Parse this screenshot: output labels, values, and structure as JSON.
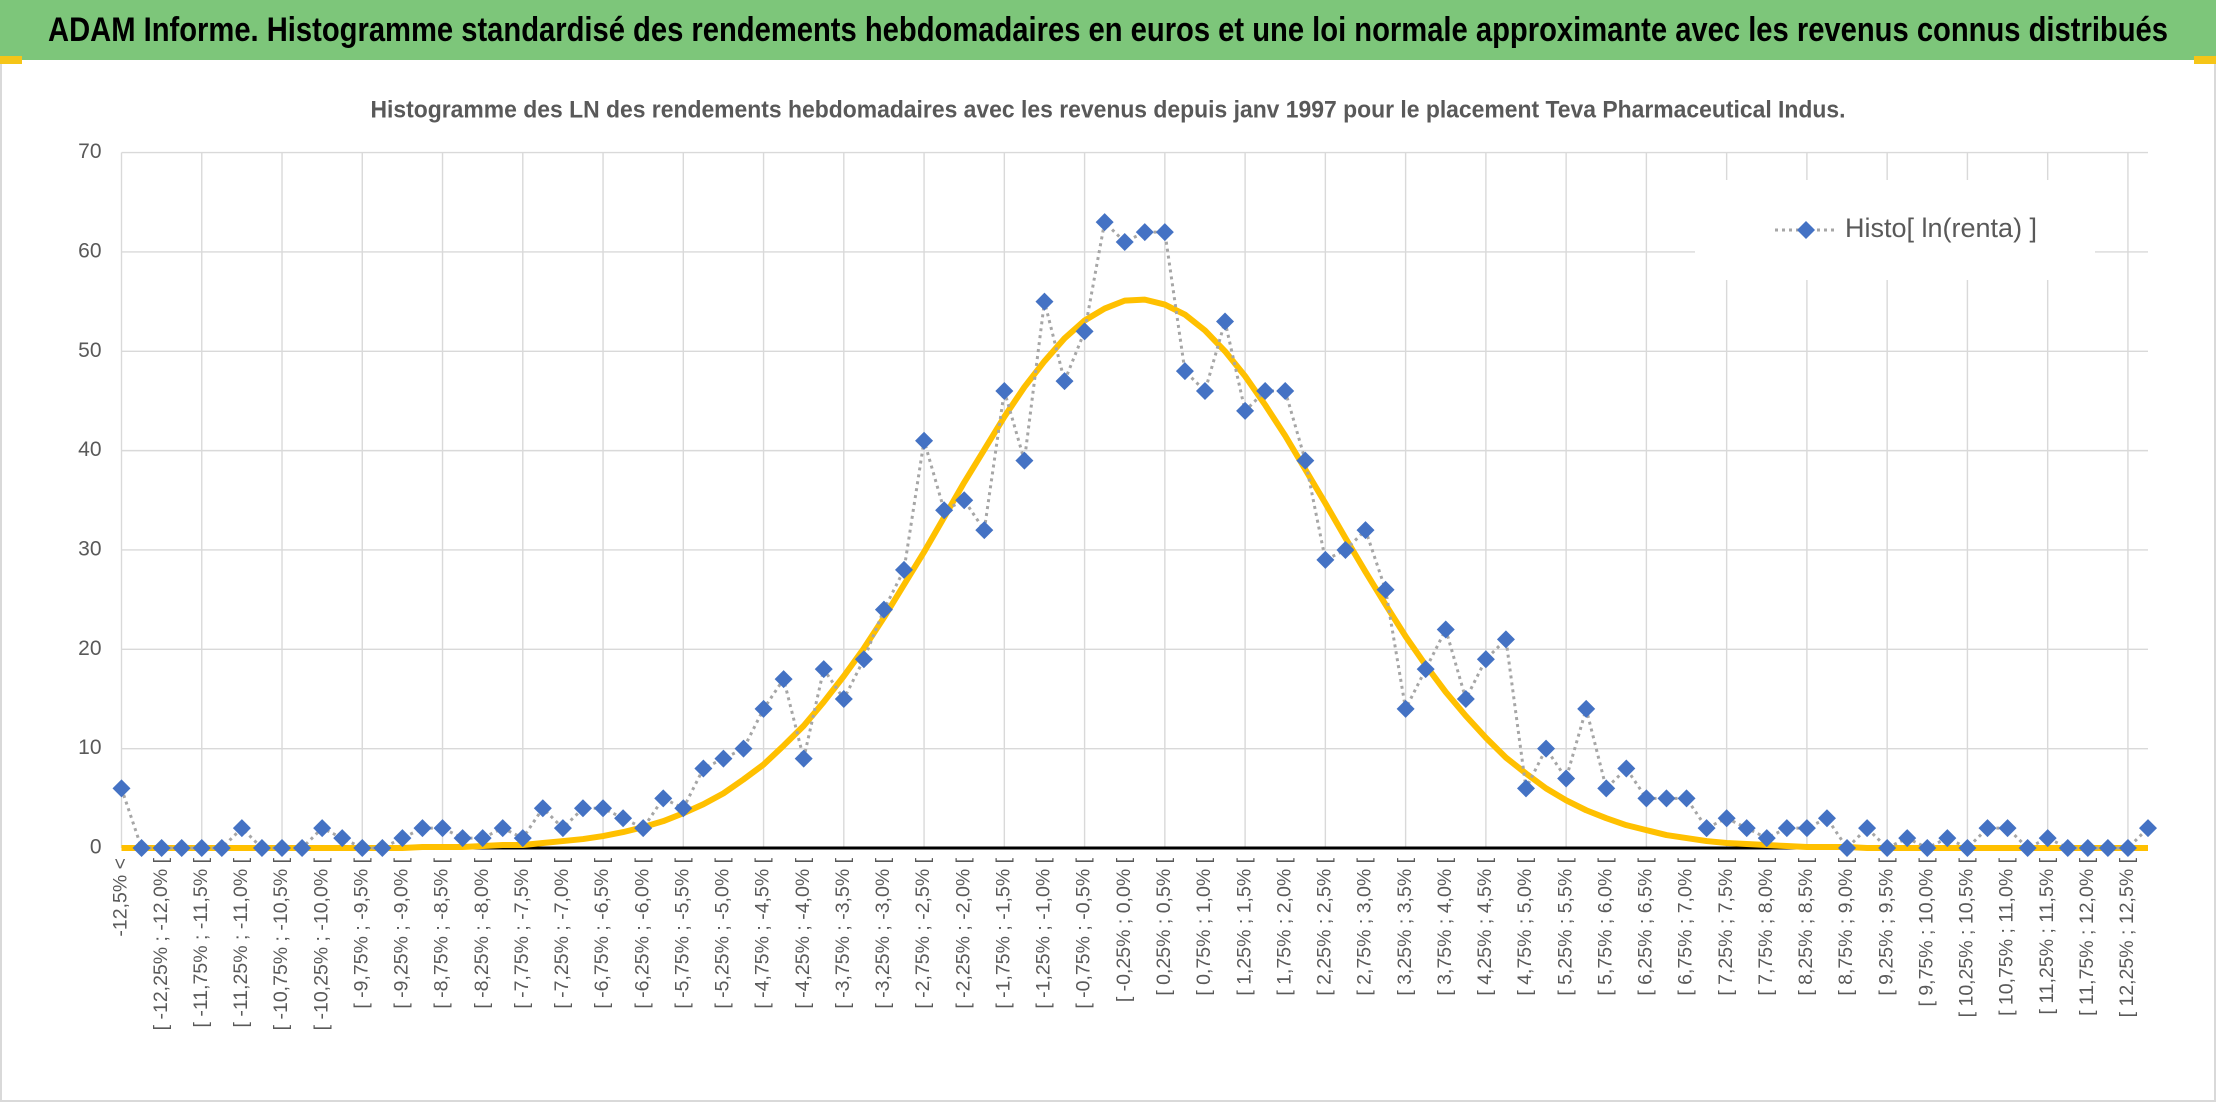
{
  "chart_data": {
    "type": "line",
    "title": "ADAM Informe. Histogramme standardisé des rendements hebdomadaires en euros et une loi normale approximante avec les revenus connus distribués",
    "subtitle": "Histogramme des LN des rendements hebdomadaires avec les revenus depuis janv 1997 pour le placement Teva Pharmaceutical Indus.",
    "categories": [
      "-12,5% <",
      null,
      "[ -12,25% ; -12,0% [",
      null,
      "[ -11,75% ; -11,5% [",
      null,
      "[ -11,25% ; -11,0% [",
      null,
      "[ -10,75% ; -10,5% [",
      null,
      "[ -10,25% ; -10,0% [",
      null,
      "[ -9,75% ; -9,5% [",
      null,
      "[ -9,25% ; -9,0% [",
      null,
      "[ -8,75% ; -8,5% [",
      null,
      "[ -8,25% ; -8,0% [",
      null,
      "[ -7,75% ; -7,5% [",
      null,
      "[ -7,25% ; -7,0% [",
      null,
      "[ -6,75% ; -6,5% [",
      null,
      "[ -6,25% ; -6,0% [",
      null,
      "[ -5,75% ; -5,5% [",
      null,
      "[ -5,25% ; -5,0% [",
      null,
      "[ -4,75% ; -4,5% [",
      null,
      "[ -4,25% ; -4,0% [",
      null,
      "[ -3,75% ; -3,5% [",
      null,
      "[ -3,25% ; -3,0% [",
      null,
      "[ -2,75% ; -2,5% [",
      null,
      "[ -2,25% ; -2,0% [",
      null,
      "[ -1,75% ; -1,5% [",
      null,
      "[ -1,25% ; -1,0% [",
      null,
      "[ -0,75% ; -0,5% [",
      null,
      "[ -0,25% ; 0,0% [",
      null,
      "[ 0,25% ; 0,5% [",
      null,
      "[ 0,75% ; 1,0% [",
      null,
      "[ 1,25% ; 1,5% [",
      null,
      "[ 1,75% ; 2,0% [",
      null,
      "[ 2,25% ; 2,5% [",
      null,
      "[ 2,75% ; 3,0% [",
      null,
      "[ 3,25% ; 3,5% [",
      null,
      "[ 3,75% ; 4,0% [",
      null,
      "[ 4,25% ; 4,5% [",
      null,
      "[ 4,75% ; 5,0% [",
      null,
      "[ 5,25% ; 5,5% [",
      null,
      "[ 5,75% ; 6,0% [",
      null,
      "[ 6,25% ; 6,5% [",
      null,
      "[ 6,75% ; 7,0% [",
      null,
      "[ 7,25% ; 7,5% [",
      null,
      "[ 7,75% ; 8,0% [",
      null,
      "[ 8,25% ; 8,5% [",
      null,
      "[ 8,75% ; 9,0% [",
      null,
      "[ 9,25% ; 9,5% [",
      null,
      "[ 9,75% ; 10,0% [",
      null,
      "[ 10,25% ; 10,5% [",
      null,
      "[ 10,75% ; 11,0% [",
      null,
      "[ 11,25% ; 11,5% [",
      null,
      "[ 11,75% ; 12,0% [",
      null,
      "[ 12,25% ; 12,5% [",
      null
    ],
    "series": [
      {
        "name": "Histo[ ln(renta) ]",
        "color": "#4472c4",
        "line_color": "#a6a6a6",
        "marker": "diamond",
        "values": [
          6,
          0,
          0,
          0,
          0,
          0,
          2,
          0,
          0,
          0,
          2,
          1,
          0,
          0,
          1,
          2,
          2,
          1,
          1,
          2,
          1,
          4,
          2,
          4,
          4,
          3,
          2,
          5,
          4,
          8,
          9,
          10,
          14,
          17,
          9,
          18,
          15,
          19,
          24,
          28,
          41,
          34,
          35,
          32,
          46,
          39,
          55,
          47,
          52,
          63,
          61,
          62,
          62,
          48,
          46,
          53,
          44,
          46,
          46,
          39,
          29,
          30,
          32,
          26,
          14,
          18,
          22,
          15,
          19,
          21,
          6,
          10,
          7,
          14,
          6,
          8,
          5,
          5,
          5,
          2,
          3,
          2,
          1,
          2,
          2,
          3,
          0,
          2,
          0,
          1,
          0,
          1,
          0,
          2,
          2,
          0,
          1,
          0,
          0,
          0,
          0,
          2
        ]
      },
      {
        "color": "#ffc000",
        "marker": "none",
        "values": [
          0,
          0,
          0,
          0,
          0,
          0,
          0,
          0,
          0,
          0,
          0,
          0,
          0,
          0,
          0,
          0.1,
          0.1,
          0.1,
          0.2,
          0.3,
          0.3,
          0.5,
          0.7,
          0.9,
          1.2,
          1.6,
          2.1,
          2.7,
          3.5,
          4.4,
          5.5,
          6.9,
          8.4,
          10.3,
          12.3,
          14.7,
          17.3,
          20.1,
          23.2,
          26.5,
          29.8,
          33.3,
          36.8,
          40.1,
          43.4,
          46.4,
          49.0,
          51.3,
          53.1,
          54.3,
          55.1,
          55.2,
          54.7,
          53.7,
          52.1,
          50.0,
          47.5,
          44.6,
          41.5,
          38.1,
          34.7,
          31.2,
          27.8,
          24.5,
          21.3,
          18.4,
          15.7,
          13.3,
          11.1,
          9.1,
          7.5,
          6.0,
          4.8,
          3.8,
          3.0,
          2.3,
          1.8,
          1.3,
          1.0,
          0.7,
          0.5,
          0.4,
          0.3,
          0.2,
          0.1,
          0.1,
          0.1,
          0,
          0,
          0,
          0,
          0,
          0,
          0,
          0,
          0,
          0,
          0,
          0,
          0,
          0,
          0
        ]
      }
    ],
    "ylim": [
      0,
      70
    ],
    "yticks": [
      0,
      10,
      20,
      30,
      40,
      50,
      60,
      70
    ],
    "grid": true,
    "legend": "top-right"
  }
}
